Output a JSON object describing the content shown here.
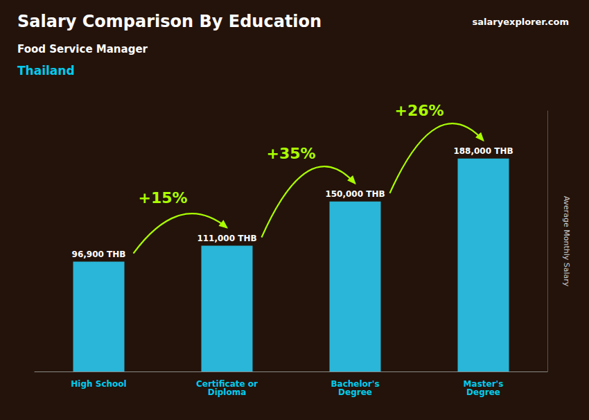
{
  "chart_data": {
    "type": "bar",
    "title": "Salary Comparison By Education",
    "subtitle": [
      "Food Service Manager",
      "Thailand"
    ],
    "source": "salaryexplorer.com",
    "ylabel": "Average Monthly Salary",
    "categories": [
      "High School",
      "Certificate or\nDiploma",
      "Bachelor's\nDegree",
      "Master's\nDegree"
    ],
    "values": [
      96900,
      111000,
      150000,
      188000
    ],
    "value_labels": [
      "96,900 THB",
      "111,000 THB",
      "150,000 THB",
      "188,000 THB"
    ],
    "data_labels": true,
    "annotations": [
      "+15%",
      "+35%",
      "+26%"
    ],
    "color": "#29b6d8",
    "ylim": [
      0,
      230000
    ],
    "grid": false,
    "tick_labels": "x"
  }
}
